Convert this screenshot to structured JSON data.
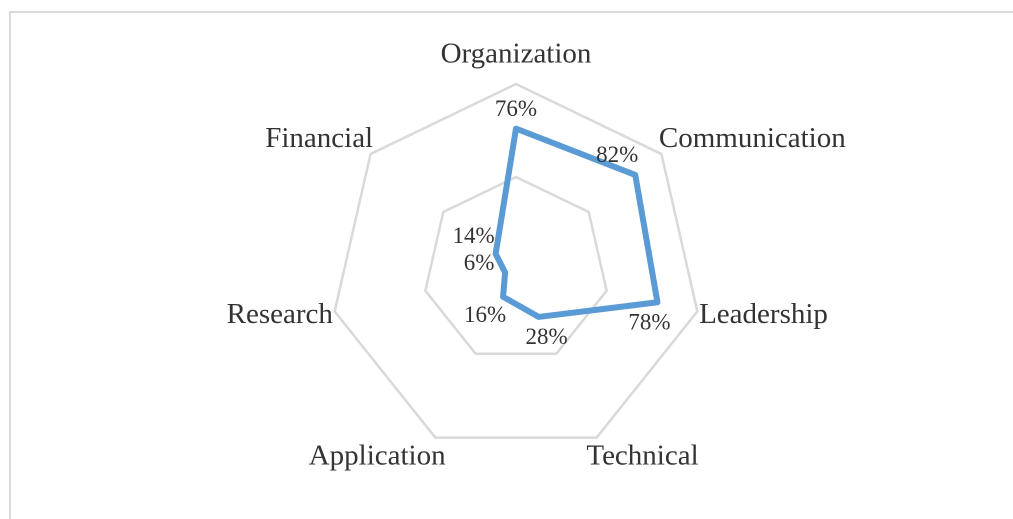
{
  "chart_data": {
    "type": "radar",
    "categories": [
      "Organization",
      "Communication",
      "Leadership",
      "Technical",
      "Application",
      "Research",
      "Financial"
    ],
    "series": [
      {
        "color": "#5b9bd5",
        "values": [
          76,
          82,
          78,
          28,
          16,
          6,
          14
        ],
        "value_labels": [
          "76%",
          "82%",
          "78%",
          "28%",
          "16%",
          "6%",
          "14%"
        ]
      }
    ],
    "rlim": [
      0,
      100
    ],
    "rticks": [
      50,
      100
    ],
    "grid": true
  }
}
